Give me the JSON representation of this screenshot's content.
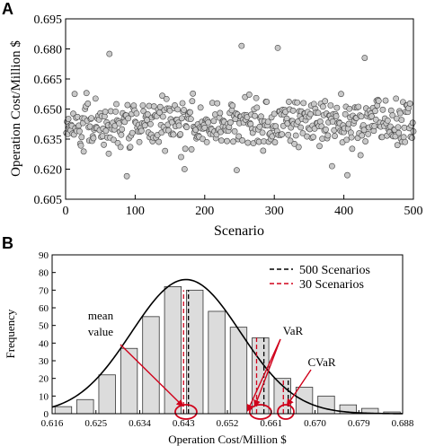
{
  "panel_a": {
    "letter": "A",
    "chart_data": {
      "type": "scatter",
      "xlabel": "Scenario",
      "ylabel": "Operation Cost/Million $",
      "xlim": [
        0,
        500
      ],
      "ylim": [
        0.605,
        0.695
      ],
      "xticks": [
        "0",
        "100",
        "200",
        "300",
        "400",
        "500"
      ],
      "yticks": [
        "0.605",
        "0.620",
        "0.635",
        "0.650",
        "0.665",
        "0.680",
        "0.695"
      ],
      "n_points": 500,
      "summary": {
        "mean": 0.6435
      },
      "notable_points": [
        {
          "x": 88,
          "y": 0.6855
        },
        {
          "x": 63,
          "y": 0.6775
        },
        {
          "x": 253,
          "y": 0.6815
        },
        {
          "x": 305,
          "y": 0.6805
        },
        {
          "x": 430,
          "y": 0.6755
        },
        {
          "x": 383,
          "y": 0.6215
        },
        {
          "x": 88,
          "y": 0.6165
        },
        {
          "x": 405,
          "y": 0.617
        },
        {
          "x": 246,
          "y": 0.6195
        },
        {
          "x": 171,
          "y": 0.62
        }
      ],
      "grid": false
    }
  },
  "panel_b": {
    "letter": "B",
    "chart_data": {
      "type": "bar",
      "xlabel": "Operation Cost/Million $",
      "ylabel": "Frequency",
      "xlim": [
        0.616,
        0.688
      ],
      "ylim": [
        0,
        90
      ],
      "xticks": [
        "0.616",
        "0.625",
        "0.634",
        "0.643",
        "0.652",
        "0.661",
        "0.670",
        "0.679",
        "0.688"
      ],
      "yticks": [
        "0",
        "10",
        "20",
        "30",
        "40",
        "50",
        "60",
        "70",
        "80",
        "90"
      ],
      "bin_width": 0.0045,
      "bin_centers": [
        0.6183,
        0.6228,
        0.6273,
        0.6318,
        0.6363,
        0.6408,
        0.6453,
        0.6498,
        0.6543,
        0.6588,
        0.6633,
        0.6678,
        0.6723,
        0.6768,
        0.6813,
        0.6858
      ],
      "values": [
        4,
        8,
        22,
        37,
        55,
        72,
        70,
        58,
        49,
        43,
        20,
        15,
        10,
        5,
        3,
        1
      ],
      "fitted_curve": {
        "kind": "normal",
        "mean": 0.6435,
        "std": 0.0112,
        "peak": 76
      },
      "reference_lines": [
        {
          "name": "500 Scenarios",
          "style": "dashed",
          "color": "#000000",
          "mean": 0.644,
          "var": 0.6595,
          "cvar": 0.6645
        },
        {
          "name": "30 Scenarios",
          "style": "dashed",
          "color": "#d0021b",
          "mean": 0.643,
          "var": 0.658,
          "cvar": 0.6635
        }
      ],
      "annotations": [
        {
          "label": "mean\nvalue",
          "target": 0.6435
        },
        {
          "label": "VaR",
          "target": 0.6588
        },
        {
          "label": "CVaR",
          "target": 0.664
        }
      ],
      "legend_position": "top-right",
      "colors": {
        "bar_fill": "#dcdcdc",
        "curve": "#000000",
        "highlight": "#d0021b"
      }
    }
  }
}
